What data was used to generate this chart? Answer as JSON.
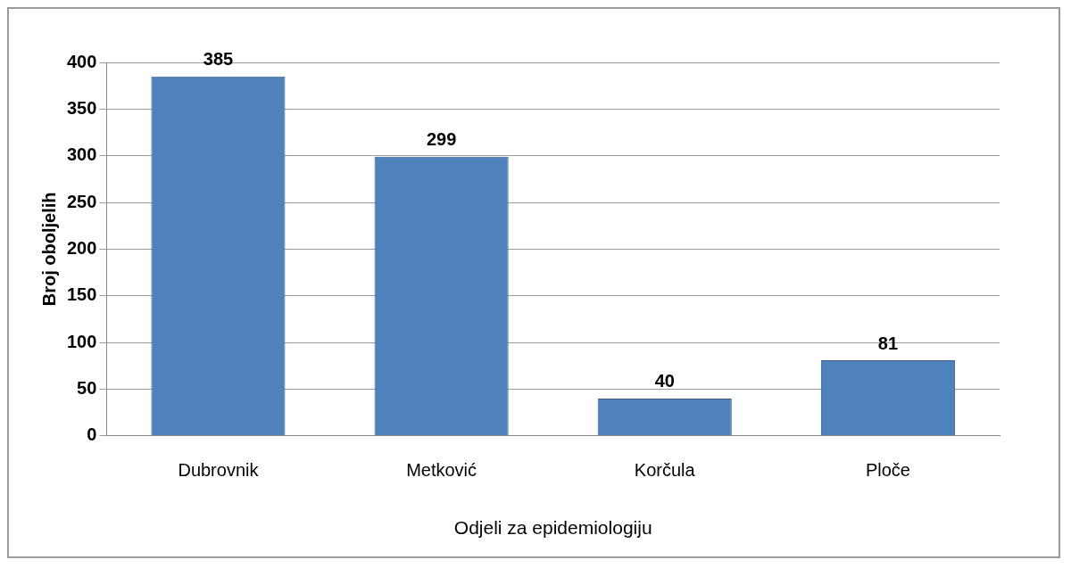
{
  "chart_data": {
    "type": "bar",
    "xlabel": "Odjeli za epidemiologiju",
    "ylabel": "Broj oboljelih",
    "categories": [
      "Dubrovnik",
      "Metković",
      "Korčula",
      "Ploče"
    ],
    "values": [
      385,
      299,
      40,
      81
    ],
    "color": "#4f81bd",
    "ylim": [
      0,
      400
    ],
    "yticks": [
      0,
      50,
      100,
      150,
      200,
      250,
      300,
      350,
      400
    ],
    "grid": "y",
    "legend": false,
    "data_labels": true
  }
}
